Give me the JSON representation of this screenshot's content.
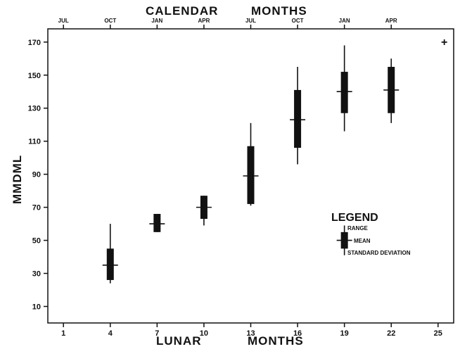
{
  "chart_data": {
    "type": "box",
    "title_top": [
      "CALENDAR",
      "MONTHS"
    ],
    "xlabel": [
      "LUNAR",
      "MONTHS"
    ],
    "ylabel": "MMDML",
    "ylim": [
      0,
      178
    ],
    "xlim": [
      0,
      26
    ],
    "y_ticks": [
      10,
      30,
      50,
      70,
      90,
      110,
      130,
      150,
      170
    ],
    "x_ticks": [
      1,
      4,
      7,
      10,
      13,
      16,
      19,
      22,
      25
    ],
    "top_ticks": [
      {
        "x": 1,
        "label": "JUL"
      },
      {
        "x": 4,
        "label": "OCT"
      },
      {
        "x": 7,
        "label": "JAN"
      },
      {
        "x": 10,
        "label": "APR"
      },
      {
        "x": 13,
        "label": "JUL"
      },
      {
        "x": 16,
        "label": "OCT"
      },
      {
        "x": 19,
        "label": "JAN"
      },
      {
        "x": 22,
        "label": "APR"
      }
    ],
    "series": [
      {
        "x": 4,
        "min": 24,
        "max": 60,
        "mean": 35,
        "sd_low": 26,
        "sd_high": 45
      },
      {
        "x": 7,
        "min": 55,
        "max": 66,
        "mean": 60,
        "sd_low": 55,
        "sd_high": 66
      },
      {
        "x": 10,
        "min": 59,
        "max": 77,
        "mean": 70,
        "sd_low": 63,
        "sd_high": 77
      },
      {
        "x": 13,
        "min": 71,
        "max": 121,
        "mean": 89,
        "sd_low": 72,
        "sd_high": 107
      },
      {
        "x": 16,
        "min": 96,
        "max": 155,
        "mean": 123,
        "sd_low": 106,
        "sd_high": 141
      },
      {
        "x": 19,
        "min": 116,
        "max": 168,
        "mean": 140,
        "sd_low": 127,
        "sd_high": 152
      },
      {
        "x": 22,
        "min": 121,
        "max": 160,
        "mean": 141,
        "sd_low": 127,
        "sd_high": 155
      }
    ],
    "legend": {
      "title": "LEGEND",
      "range_label": "RANGE",
      "mean_label": "MEAN",
      "sd_label": "STANDARD DEVIATION",
      "example": {
        "x": 19,
        "min": 41,
        "max": 59,
        "mean": 50,
        "sd_low": 45,
        "sd_high": 55
      }
    },
    "marker": "+"
  }
}
